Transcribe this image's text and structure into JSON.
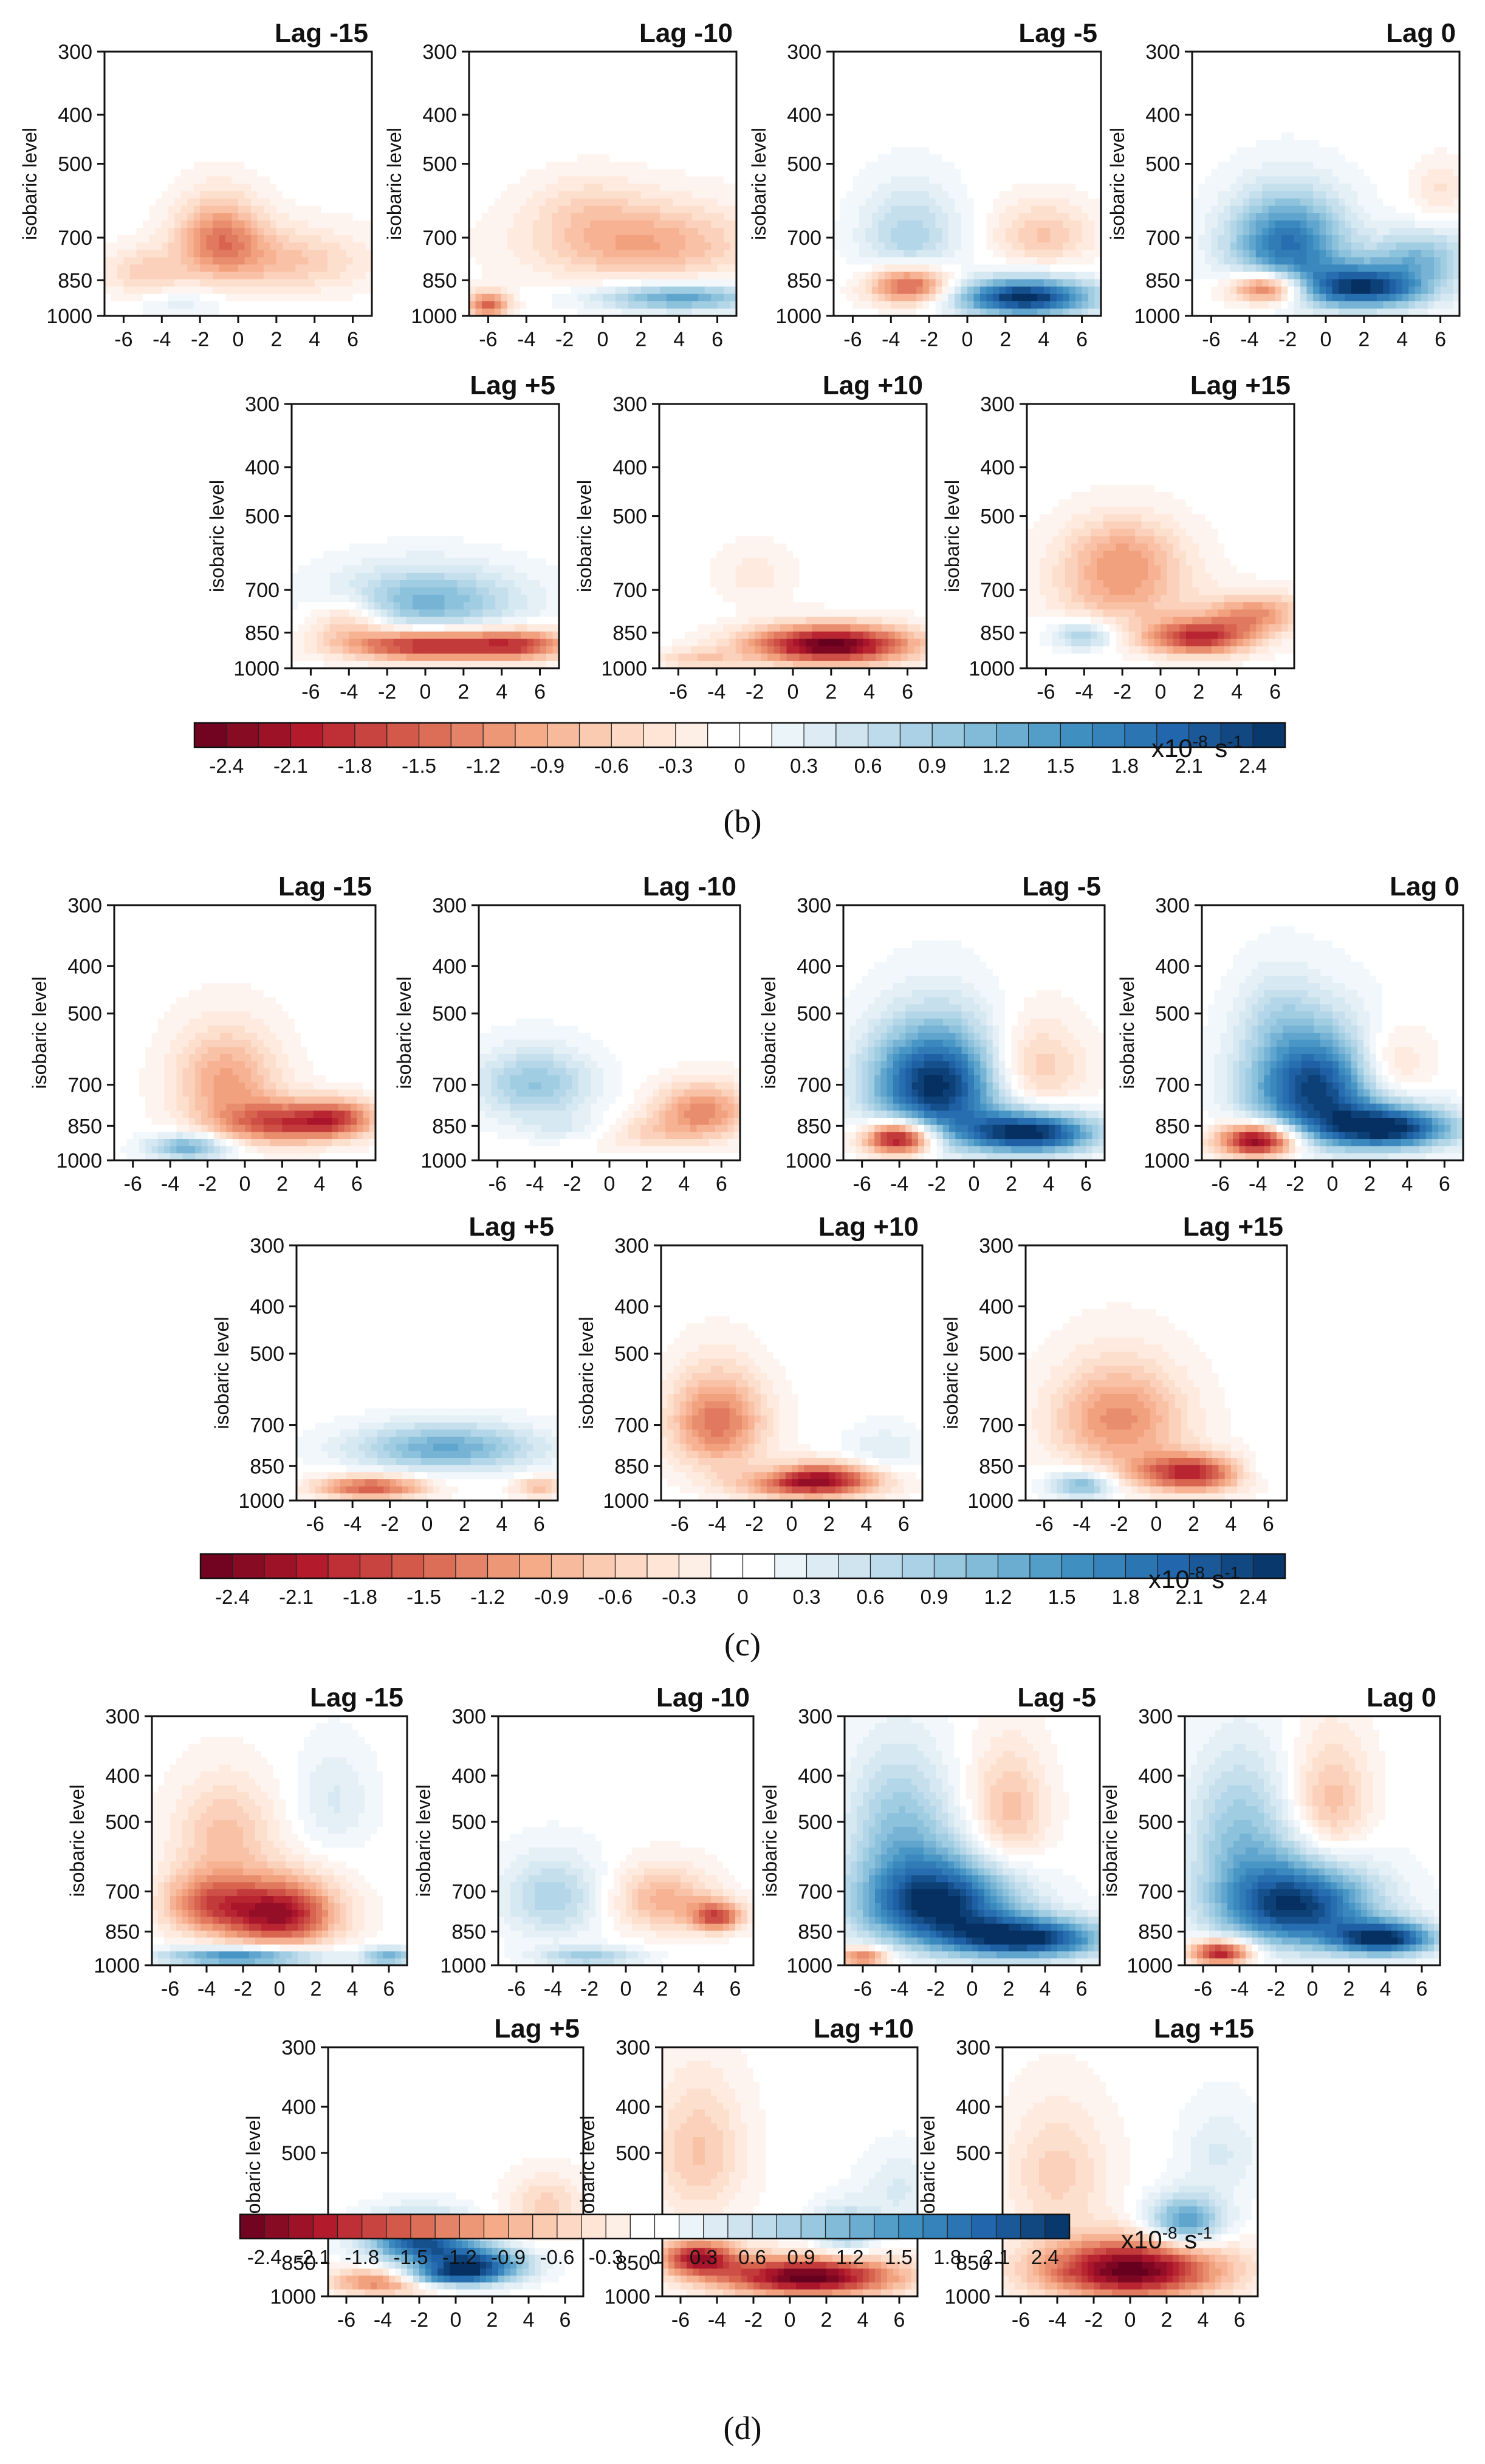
{
  "chart_data": [
    {
      "type": "heatmap",
      "panel_label": "(b)",
      "colorbar_ticks": [
        "-2.4",
        "-2.1",
        "-1.8",
        "-1.5",
        "-1.2",
        "-0.9",
        "-0.6",
        "-0.3",
        "0",
        "0.3",
        "0.6",
        "0.9",
        "1.2",
        "1.5",
        "1.8",
        "2.1",
        "2.4"
      ],
      "colorbar_unit": "x10",
      "colorbar_unit_exp": "-8",
      "colorbar_unit_tail": " s",
      "colorbar_unit_tail_exp": "-1",
      "colormap": [
        "#67001f",
        "#b2182b",
        "#d6604d",
        "#f4a582",
        "#fddbc7",
        "#ffffff",
        "#d1e5f0",
        "#92c5de",
        "#4393c3",
        "#2166ac",
        "#053061"
      ],
      "ylabel": "isobaric level",
      "xticks": [
        "-6",
        "-4",
        "-2",
        "0",
        "2",
        "4",
        "6"
      ],
      "yticks": [
        "300",
        "400",
        "500",
        "700",
        "850",
        "1000"
      ],
      "xlim": [
        -7,
        7
      ],
      "ylim": [
        1000,
        300
      ],
      "panels": [
        {
          "title": "Lag -15",
          "blobs": [
            [
              -1,
              700,
              1.6,
              90,
              -1.2
            ],
            [
              2.5,
              780,
              3,
              80,
              -0.7
            ],
            [
              -5,
              820,
              1.5,
              60,
              -0.6
            ],
            [
              -3,
              950,
              1.5,
              40,
              0.3
            ]
          ]
        },
        {
          "title": "Lag -10",
          "blobs": [
            [
              2,
              720,
              4,
              90,
              -1.0
            ],
            [
              -6,
              950,
              0.8,
              40,
              -1.5
            ],
            [
              4,
              920,
              3,
              40,
              1.4
            ],
            [
              -1,
              600,
              2,
              60,
              -0.3
            ]
          ]
        },
        {
          "title": "Lag -5",
          "blobs": [
            [
              3,
              920,
              2.5,
              55,
              2.6
            ],
            [
              -3,
              870,
              1.5,
              55,
              -1.8
            ],
            [
              -3,
              700,
              1.8,
              110,
              0.8
            ],
            [
              4,
              690,
              1.8,
              70,
              -0.7
            ]
          ]
        },
        {
          "title": "Lag 0",
          "blobs": [
            [
              -2,
              720,
              2.2,
              110,
              1.9
            ],
            [
              2,
              880,
              2.5,
              60,
              2.4
            ],
            [
              -3,
              880,
              1.4,
              45,
              -2.0
            ],
            [
              5,
              760,
              1.8,
              60,
              1.0
            ],
            [
              6,
              560,
              1,
              50,
              -0.4
            ]
          ]
        },
        {
          "title": "Lag +5",
          "blobs": [
            [
              0,
              740,
              3.5,
              80,
              1.2
            ],
            [
              0,
              900,
              3,
              45,
              -2.0
            ],
            [
              5,
              900,
              2,
              45,
              -1.4
            ],
            [
              -4,
              800,
              1.5,
              60,
              -0.8
            ]
          ]
        },
        {
          "title": "Lag +10",
          "blobs": [
            [
              2,
              900,
              3,
              55,
              -2.6
            ],
            [
              -2,
              650,
              1.5,
              60,
              -0.3
            ],
            [
              -5,
              960,
              1.5,
              30,
              -0.6
            ]
          ]
        },
        {
          "title": "Lag +15",
          "blobs": [
            [
              -2,
              680,
              2.5,
              100,
              -1.0
            ],
            [
              2,
              870,
              2,
              50,
              -1.9
            ],
            [
              5,
              780,
              1.8,
              50,
              -1.1
            ],
            [
              -4,
              860,
              1.2,
              40,
              0.9
            ],
            [
              -2,
              570,
              2,
              60,
              -0.4
            ]
          ]
        }
      ]
    },
    {
      "type": "heatmap",
      "panel_label": "(c)",
      "colorbar_ticks": [
        "-2.4",
        "-2.1",
        "-1.8",
        "-1.5",
        "-1.2",
        "-0.9",
        "-0.6",
        "-0.3",
        "0",
        "0.3",
        "0.6",
        "0.9",
        "1.2",
        "1.5",
        "1.8",
        "2.1",
        "2.4"
      ],
      "colorbar_unit": "x10",
      "colorbar_unit_exp": "-8",
      "colorbar_unit_tail": " s",
      "colorbar_unit_tail_exp": "-1",
      "ylabel": "isobaric level",
      "xticks": [
        "-6",
        "-4",
        "-2",
        "0",
        "2",
        "4",
        "6"
      ],
      "yticks": [
        "300",
        "400",
        "500",
        "700",
        "850",
        "1000"
      ],
      "xlim": [
        -7,
        7
      ],
      "ylim": [
        1000,
        300
      ],
      "panels": [
        {
          "title": "Lag -15",
          "blobs": [
            [
              -1,
              680,
              2,
              110,
              -1.0
            ],
            [
              2,
              840,
              2.5,
              60,
              -1.6
            ],
            [
              5,
              820,
              1.5,
              50,
              -1.2
            ],
            [
              -3,
              940,
              1.5,
              40,
              1.3
            ]
          ]
        },
        {
          "title": "Lag -10",
          "blobs": [
            [
              -4,
              700,
              2.2,
              80,
              1.0
            ],
            [
              5,
              790,
              1.8,
              70,
              -1.2
            ],
            [
              2,
              880,
              2.5,
              50,
              -0.5
            ],
            [
              -2,
              860,
              2,
              40,
              0.4
            ]
          ]
        },
        {
          "title": "Lag -5",
          "blobs": [
            [
              -2,
              700,
              2.5,
              130,
              2.6
            ],
            [
              3,
              880,
              2.5,
              60,
              2.6
            ],
            [
              -4,
              900,
              1.3,
              50,
              -2.6
            ],
            [
              3,
              650,
              2,
              100,
              -0.8
            ]
          ]
        },
        {
          "title": "Lag 0",
          "blobs": [
            [
              -1,
              710,
              2.5,
              130,
              2.4
            ],
            [
              3,
              860,
              2.5,
              60,
              2.5
            ],
            [
              -4,
              910,
              1.5,
              50,
              -2.6
            ],
            [
              3,
              640,
              1.5,
              80,
              -0.7
            ],
            [
              -3,
              500,
              1.5,
              80,
              0.4
            ]
          ]
        },
        {
          "title": "Lag +5",
          "blobs": [
            [
              1,
              780,
              3.5,
              60,
              1.3
            ],
            [
              -3,
              940,
              2,
              35,
              -1.6
            ],
            [
              6,
              940,
              1,
              30,
              -0.8
            ]
          ]
        },
        {
          "title": "Lag +10",
          "blobs": [
            [
              -4,
              690,
              1.8,
              110,
              -1.4
            ],
            [
              1,
              910,
              2.5,
              50,
              -2.5
            ],
            [
              5,
              800,
              1.5,
              70,
              0.4
            ],
            [
              -1,
              880,
              1.5,
              40,
              0.6
            ]
          ]
        },
        {
          "title": "Lag +15",
          "blobs": [
            [
              -2,
              680,
              2.5,
              120,
              -1.2
            ],
            [
              2,
              880,
              2.2,
              55,
              -2.0
            ],
            [
              -4,
              930,
              1.2,
              40,
              1.2
            ],
            [
              5,
              870,
              1.5,
              50,
              0.5
            ]
          ]
        }
      ]
    },
    {
      "type": "heatmap",
      "panel_label": "(d)",
      "colorbar_ticks": [
        "-2.4",
        "-2.1",
        "-1.8",
        "-1.5",
        "-1.2",
        "-0.9",
        "-0.6",
        "-0.3",
        "0",
        "0.3",
        "0.6",
        "0.9",
        "1.2",
        "1.5",
        "1.8",
        "2.1",
        "2.4"
      ],
      "colorbar_unit": "x10",
      "colorbar_unit_exp": "-8",
      "colorbar_unit_tail": " s",
      "colorbar_unit_tail_exp": "-1",
      "ylabel": "isobaric level",
      "xticks": [
        "-6",
        "-4",
        "-2",
        "0",
        "2",
        "4",
        "6"
      ],
      "yticks": [
        "300",
        "400",
        "500",
        "700",
        "850",
        "1000"
      ],
      "xlim": [
        -7,
        7
      ],
      "ylim": [
        1000,
        300
      ],
      "panels": [
        {
          "title": "Lag -15",
          "blobs": [
            [
              0,
              780,
              2.2,
              90,
              -2.2
            ],
            [
              -4,
              740,
              1.8,
              80,
              -1.3
            ],
            [
              -3,
              520,
              2,
              90,
              -0.7
            ],
            [
              -2,
              960,
              3,
              30,
              1.8
            ],
            [
              6,
              960,
              1,
              30,
              1.2
            ],
            [
              3,
              450,
              1.5,
              80,
              0.4
            ]
          ]
        },
        {
          "title": "Lag -10",
          "blobs": [
            [
              2,
              730,
              2,
              80,
              -0.9
            ],
            [
              5,
              790,
              1,
              40,
              -1.6
            ],
            [
              -4,
              720,
              2,
              100,
              0.8
            ],
            [
              -2,
              960,
              2,
              30,
              0.9
            ]
          ]
        },
        {
          "title": "Lag -5",
          "blobs": [
            [
              -2,
              740,
              3,
              110,
              2.6
            ],
            [
              3,
              880,
              3,
              60,
              2.5
            ],
            [
              -4,
              500,
              2,
              120,
              0.9
            ],
            [
              2,
              480,
              1.5,
              100,
              -0.8
            ],
            [
              -6,
              960,
              1,
              30,
              -1.5
            ]
          ]
        },
        {
          "title": "Lag 0",
          "blobs": [
            [
              -1,
              750,
              3,
              110,
              2.5
            ],
            [
              4,
              880,
              2,
              50,
              2.4
            ],
            [
              -4,
              520,
              2,
              130,
              0.9
            ],
            [
              1,
              460,
              1.5,
              100,
              -0.8
            ],
            [
              -5,
              940,
              1.2,
              40,
              -2.2
            ]
          ]
        },
        {
          "title": "Lag +5",
          "blobs": [
            [
              -2,
              760,
              2,
              60,
              2.2
            ],
            [
              1,
              860,
              2,
              50,
              2.2
            ],
            [
              -4,
              930,
              2,
              40,
              -1.5
            ],
            [
              5,
              650,
              1.5,
              70,
              -0.6
            ],
            [
              -1,
              910,
              2,
              30,
              1.4
            ]
          ]
        },
        {
          "title": "Lag +10",
          "blobs": [
            [
              1,
              910,
              3.5,
              60,
              -2.6
            ],
            [
              -5,
              830,
              1.5,
              50,
              -2.0
            ],
            [
              -5,
              500,
              1.8,
              120,
              -0.7
            ],
            [
              3,
              730,
              1.2,
              60,
              1.0
            ],
            [
              6,
              600,
              1.5,
              80,
              0.4
            ]
          ]
        },
        {
          "title": "Lag +15",
          "blobs": [
            [
              0,
              880,
              3.5,
              90,
              -2.6
            ],
            [
              -4,
              550,
              2,
              120,
              -0.6
            ],
            [
              3,
              700,
              1.5,
              60,
              1.6
            ],
            [
              5,
              500,
              1.5,
              80,
              0.4
            ]
          ]
        }
      ]
    }
  ]
}
